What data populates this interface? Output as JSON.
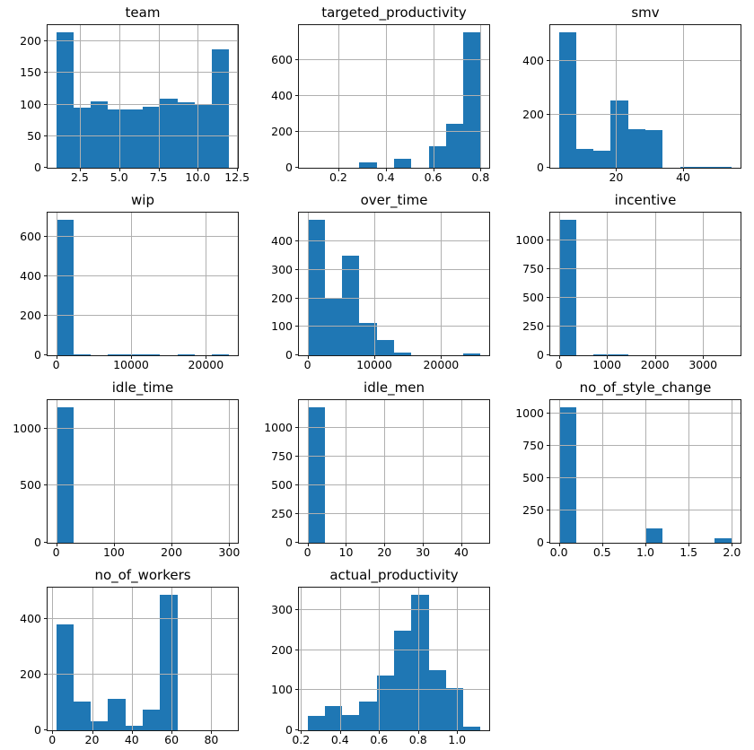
{
  "figure": {
    "kind": "histogram-grid",
    "background": "#ffffff",
    "bar_color": "#1f77b4",
    "grid_color": "#b0b0b0",
    "spine_color": "#1a1a1a",
    "text_color": "#000000",
    "grid_on": true,
    "legend": "none"
  },
  "chart_data": [
    {
      "type": "bar",
      "subtype": "histogram",
      "title": "team",
      "bins": 10,
      "bin_range": [
        1,
        12
      ],
      "counts": [
        215,
        95,
        105,
        93,
        93,
        97,
        109,
        103,
        100,
        187
      ],
      "xlim": [
        0.45,
        12.55
      ],
      "ylim": [
        0,
        225.75
      ],
      "xticks": {
        "values": [
          2.5,
          5.0,
          7.5,
          10.0,
          12.5
        ],
        "labels": [
          "2.5",
          "5.0",
          "7.5",
          "10.0",
          "12.5"
        ]
      },
      "yticks": {
        "values": [
          0,
          50,
          100,
          150,
          200
        ],
        "labels": [
          "0",
          "50",
          "100",
          "150",
          "200"
        ]
      }
    },
    {
      "type": "bar",
      "subtype": "histogram",
      "title": "targeted_productivity",
      "bins": 10,
      "bin_range": [
        0.07,
        0.8
      ],
      "counts": [
        0,
        0,
        0,
        28,
        0,
        48,
        0,
        120,
        243,
        755
      ],
      "xlim": [
        0.0335,
        0.8365
      ],
      "ylim": [
        0,
        792.75
      ],
      "xticks": {
        "values": [
          0.2,
          0.4,
          0.6,
          0.8
        ],
        "labels": [
          "0.2",
          "0.4",
          "0.6",
          "0.8"
        ]
      },
      "yticks": {
        "values": [
          0,
          200,
          400,
          600
        ],
        "labels": [
          "0",
          "200",
          "400",
          "600"
        ]
      }
    },
    {
      "type": "bar",
      "subtype": "histogram",
      "title": "smv",
      "bins": 10,
      "bin_range": [
        2.9,
        54.56
      ],
      "counts": [
        510,
        72,
        65,
        252,
        145,
        140,
        0,
        5,
        5,
        5
      ],
      "xlim": [
        0.317,
        57.143
      ],
      "ylim": [
        0,
        535.5
      ],
      "xticks": {
        "values": [
          20,
          40
        ],
        "labels": [
          "20",
          "40"
        ]
      },
      "yticks": {
        "values": [
          0,
          200,
          400
        ],
        "labels": [
          "0",
          "200",
          "400"
        ]
      }
    },
    {
      "type": "bar",
      "subtype": "histogram",
      "title": "wip",
      "bins": 10,
      "bin_range": [
        7,
        23122
      ],
      "counts": [
        687,
        4,
        0,
        3,
        3,
        3,
        0,
        3,
        0,
        4
      ],
      "xlim": [
        -1148.75,
        24277.75
      ],
      "ylim": [
        0,
        721.35
      ],
      "xticks": {
        "values": [
          0,
          10000,
          20000
        ],
        "labels": [
          "0",
          "10000",
          "20000"
        ]
      },
      "yticks": {
        "values": [
          0,
          200,
          400,
          600
        ],
        "labels": [
          "0",
          "200",
          "400",
          "600"
        ]
      }
    },
    {
      "type": "bar",
      "subtype": "histogram",
      "title": "over_time",
      "bins": 10,
      "bin_range": [
        0,
        25920
      ],
      "counts": [
        478,
        200,
        350,
        115,
        55,
        8,
        0,
        0,
        0,
        5
      ],
      "xlim": [
        -1296,
        27216
      ],
      "ylim": [
        0,
        501.9
      ],
      "xticks": {
        "values": [
          0,
          10000,
          20000
        ],
        "labels": [
          "0",
          "10000",
          "20000"
        ]
      },
      "yticks": {
        "values": [
          0,
          100,
          200,
          300,
          400
        ],
        "labels": [
          "0",
          "100",
          "200",
          "300",
          "400"
        ]
      }
    },
    {
      "type": "bar",
      "subtype": "histogram",
      "title": "incentive",
      "bins": 10,
      "bin_range": [
        0,
        3600
      ],
      "counts": [
        1187,
        0,
        5,
        5,
        0,
        0,
        0,
        0,
        0,
        0
      ],
      "xlim": [
        -180,
        3780
      ],
      "ylim": [
        0,
        1246.35
      ],
      "xticks": {
        "values": [
          0,
          1000,
          2000,
          3000
        ],
        "labels": [
          "0",
          "1000",
          "2000",
          "3000"
        ]
      },
      "yticks": {
        "values": [
          0,
          250,
          500,
          750,
          1000
        ],
        "labels": [
          "0",
          "250",
          "500",
          "750",
          "1000"
        ]
      }
    },
    {
      "type": "bar",
      "subtype": "histogram",
      "title": "idle_time",
      "bins": 10,
      "bin_range": [
        0,
        300
      ],
      "counts": [
        1192,
        0,
        0,
        0,
        0,
        0,
        0,
        0,
        0,
        0
      ],
      "xlim": [
        -15,
        315
      ],
      "ylim": [
        0,
        1251.6
      ],
      "xticks": {
        "values": [
          0,
          100,
          200,
          300
        ],
        "labels": [
          "0",
          "100",
          "200",
          "300"
        ]
      },
      "yticks": {
        "values": [
          0,
          500,
          1000
        ],
        "labels": [
          "0",
          "500",
          "1000"
        ]
      }
    },
    {
      "type": "bar",
      "subtype": "histogram",
      "title": "idle_men",
      "bins": 10,
      "bin_range": [
        0,
        45
      ],
      "counts": [
        1185,
        0,
        0,
        0,
        0,
        0,
        0,
        0,
        0,
        0
      ],
      "xlim": [
        -2.25,
        47.25
      ],
      "ylim": [
        0,
        1244.25
      ],
      "xticks": {
        "values": [
          0,
          10,
          20,
          30,
          40
        ],
        "labels": [
          "0",
          "10",
          "20",
          "30",
          "40"
        ]
      },
      "yticks": {
        "values": [
          0,
          250,
          500,
          750,
          1000
        ],
        "labels": [
          "0",
          "250",
          "500",
          "750",
          "1000"
        ]
      }
    },
    {
      "type": "bar",
      "subtype": "histogram",
      "title": "no_of_style_change",
      "bins": 10,
      "bin_range": [
        0,
        2
      ],
      "counts": [
        1050,
        0,
        0,
        0,
        0,
        114,
        0,
        0,
        0,
        35
      ],
      "xlim": [
        -0.1,
        2.1
      ],
      "ylim": [
        0,
        1102.5
      ],
      "xticks": {
        "values": [
          0.0,
          0.5,
          1.0,
          1.5,
          2.0
        ],
        "labels": [
          "0.0",
          "0.5",
          "1.0",
          "1.5",
          "2.0"
        ]
      },
      "yticks": {
        "values": [
          0,
          250,
          500,
          750,
          1000
        ],
        "labels": [
          "0",
          "250",
          "500",
          "750",
          "1000"
        ]
      }
    },
    {
      "type": "bar",
      "subtype": "histogram",
      "title": "no_of_workers",
      "bins": 10,
      "bin_range": [
        2,
        89
      ],
      "counts": [
        383,
        103,
        32,
        113,
        15,
        73,
        490,
        0,
        0,
        0
      ],
      "xlim": [
        -2.35,
        93.35
      ],
      "ylim": [
        0,
        514.5
      ],
      "xticks": {
        "values": [
          0,
          20,
          40,
          60,
          80
        ],
        "labels": [
          "0",
          "20",
          "40",
          "60",
          "80"
        ]
      },
      "yticks": {
        "values": [
          0,
          200,
          400
        ],
        "labels": [
          "0",
          "200",
          "400"
        ]
      }
    },
    {
      "type": "bar",
      "subtype": "histogram",
      "title": "actual_productivity",
      "bins": 10,
      "bin_range": [
        0.2337,
        1.1204
      ],
      "counts": [
        35,
        60,
        38,
        73,
        138,
        250,
        340,
        150,
        105,
        10
      ],
      "xlim": [
        0.18937,
        1.16473
      ],
      "ylim": [
        0,
        357
      ],
      "xticks": {
        "values": [
          0.2,
          0.4,
          0.6,
          0.8,
          1.0
        ],
        "labels": [
          "0.2",
          "0.4",
          "0.6",
          "0.8",
          "1.0"
        ]
      },
      "yticks": {
        "values": [
          0,
          100,
          200,
          300
        ],
        "labels": [
          "0",
          "100",
          "200",
          "300"
        ]
      }
    }
  ]
}
